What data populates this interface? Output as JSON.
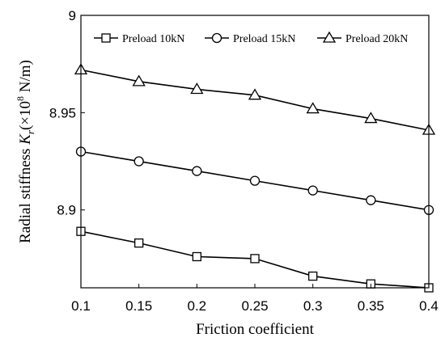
{
  "chart_data": {
    "type": "line",
    "xlabel": "Friction coefficient",
    "ylabel": {
      "prefix": "Radial stiffness ",
      "symbol": "K",
      "subscript": "r",
      "unit_open": "(×10",
      "unit_exp": "8",
      "unit_close": " N/m)"
    },
    "xlim": [
      0.1,
      0.4
    ],
    "ylim": [
      8.86,
      9.0
    ],
    "xticks": [
      "0.1",
      "0.15",
      "0.2",
      "0.25",
      "0.3",
      "0.35",
      "0.4"
    ],
    "yticks": [
      "8.9",
      "8.95",
      "9"
    ],
    "grid": false,
    "legend_position": "top",
    "x": [
      0.1,
      0.15,
      0.2,
      0.25,
      0.3,
      0.35,
      0.4
    ],
    "series": [
      {
        "name": "Preload 10kN",
        "marker": "square",
        "values": [
          8.889,
          8.883,
          8.876,
          8.875,
          8.866,
          8.862,
          8.86
        ]
      },
      {
        "name": "Preload 15kN",
        "marker": "circle",
        "values": [
          8.93,
          8.925,
          8.92,
          8.915,
          8.91,
          8.905,
          8.9
        ]
      },
      {
        "name": "Preload 20kN",
        "marker": "triangle",
        "values": [
          8.972,
          8.966,
          8.962,
          8.959,
          8.952,
          8.947,
          8.941
        ]
      }
    ]
  }
}
